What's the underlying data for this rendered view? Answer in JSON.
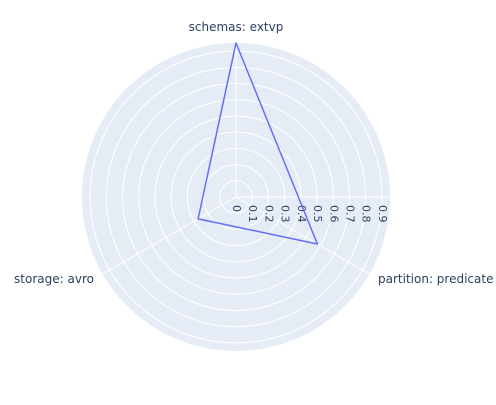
{
  "chart_data": {
    "type": "radar",
    "title": "",
    "axes": [
      "schemas: extvp",
      "partition: predicate",
      "storage: avro"
    ],
    "series": [
      {
        "values": [
          0.95,
          0.58,
          0.27
        ],
        "color": "#636efa"
      }
    ],
    "radial_range": [
      0,
      0.95
    ],
    "radial_ticks": [
      0,
      0.1,
      0.2,
      0.3,
      0.4,
      0.5,
      0.6,
      0.7,
      0.8,
      0.9
    ],
    "tick_labels": [
      "0",
      "0.1",
      "0.2",
      "0.3",
      "0.4",
      "0.5",
      "0.6",
      "0.7",
      "0.8",
      "0.9"
    ],
    "grid": true,
    "legend": "none",
    "colors": {
      "polar_background": "#e5ecf6",
      "grid": "#ffffff",
      "text": "#2a3f5f"
    }
  }
}
